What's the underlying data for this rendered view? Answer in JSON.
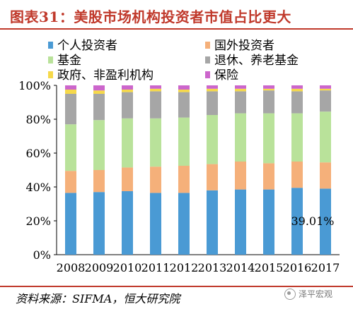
{
  "title": "图表31：美股市场机构投资者市值占比更大",
  "source": "资料来源：SIFMA，恒大研究院",
  "watermark": "泽平宏观",
  "chart_data": {
    "type": "bar",
    "stacked": true,
    "categories": [
      "2008",
      "2009",
      "2010",
      "2011",
      "2012",
      "2013",
      "2014",
      "2015",
      "2016",
      "2017"
    ],
    "series": [
      {
        "name": "个人投资者",
        "color": "#4a9ad4",
        "values": [
          36.5,
          37.0,
          37.5,
          36.5,
          36.5,
          38.0,
          38.5,
          38.5,
          39.5,
          39.01
        ]
      },
      {
        "name": "国外投资者",
        "color": "#f5b07a",
        "values": [
          13.0,
          13.0,
          14.0,
          15.5,
          16.0,
          15.5,
          16.5,
          15.5,
          15.5,
          15.5
        ]
      },
      {
        "name": "基金",
        "color": "#b9e29a",
        "values": [
          27.5,
          29.5,
          29.0,
          28.5,
          28.5,
          29.0,
          28.5,
          29.5,
          28.5,
          30.0
        ]
      },
      {
        "name": "退休、养老基金",
        "color": "#a6a6a6",
        "values": [
          18.0,
          15.5,
          15.5,
          16.0,
          15.0,
          14.0,
          13.0,
          13.5,
          13.0,
          12.5
        ]
      },
      {
        "name": "政府、非盈利机构",
        "color": "#f6d94a",
        "values": [
          2.5,
          2.0,
          1.5,
          1.5,
          1.5,
          1.5,
          1.5,
          1.0,
          1.5,
          1.0
        ]
      },
      {
        "name": "保险",
        "color": "#cc66cc",
        "values": [
          2.5,
          3.0,
          2.5,
          2.0,
          2.5,
          2.0,
          2.0,
          2.0,
          2.0,
          2.0
        ]
      }
    ],
    "ylim": [
      0,
      100
    ],
    "yticks": [
      "0%",
      "20%",
      "40%",
      "60%",
      "80%",
      "100%"
    ],
    "annotation": "39.01%",
    "grid": false,
    "legend": "top"
  }
}
